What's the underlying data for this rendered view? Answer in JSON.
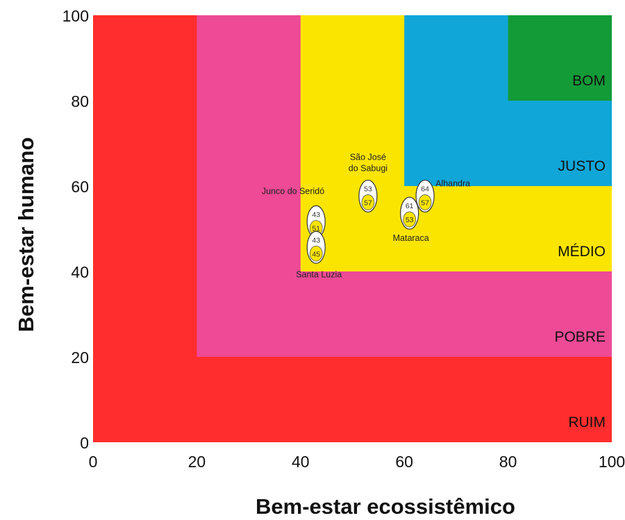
{
  "chart_data": {
    "type": "scatter",
    "title": "",
    "xlabel": "Bem-estar ecossistêmico",
    "ylabel": "Bem-estar humano",
    "xlim": [
      0,
      100
    ],
    "ylim": [
      0,
      100
    ],
    "x_ticks": [
      "0",
      "20",
      "40",
      "60",
      "80",
      "100"
    ],
    "y_ticks": [
      "0",
      "20",
      "40",
      "60",
      "80",
      "100"
    ],
    "grid": false,
    "zones": [
      {
        "label": "RUIM",
        "x_min": 0,
        "y_min": 0,
        "color": "#ff2d2d"
      },
      {
        "label": "POBRE",
        "x_min": 20,
        "y_min": 20,
        "color": "#ee4a96"
      },
      {
        "label": "MÉDIO",
        "x_min": 40,
        "y_min": 40,
        "color": "#fae500"
      },
      {
        "label": "JUSTO",
        "x_min": 60,
        "y_min": 60,
        "color": "#11a6d8"
      },
      {
        "label": "BOM",
        "x_min": 80,
        "y_min": 80,
        "color": "#139b37"
      }
    ],
    "sites": [
      {
        "name": "Junco do Seridó",
        "points": [
          {
            "x": 43,
            "y": 51,
            "top_value": "43",
            "bottom_value": "51"
          }
        ]
      },
      {
        "name": "Santa Luzia",
        "points": [
          {
            "x": 43,
            "y": 45,
            "top_value": "43",
            "bottom_value": "45"
          }
        ]
      },
      {
        "name": "São José do Sabugi",
        "points": [
          {
            "x": 53,
            "y": 57,
            "top_value": "53",
            "bottom_value": "57"
          }
        ]
      },
      {
        "name": "Mataraca",
        "points": [
          {
            "x": 61,
            "y": 53,
            "top_value": "61",
            "bottom_value": "53"
          }
        ]
      },
      {
        "name": "Alhandra",
        "points": [
          {
            "x": 64,
            "y": 57,
            "top_value": "64",
            "bottom_value": "57"
          }
        ]
      }
    ]
  }
}
